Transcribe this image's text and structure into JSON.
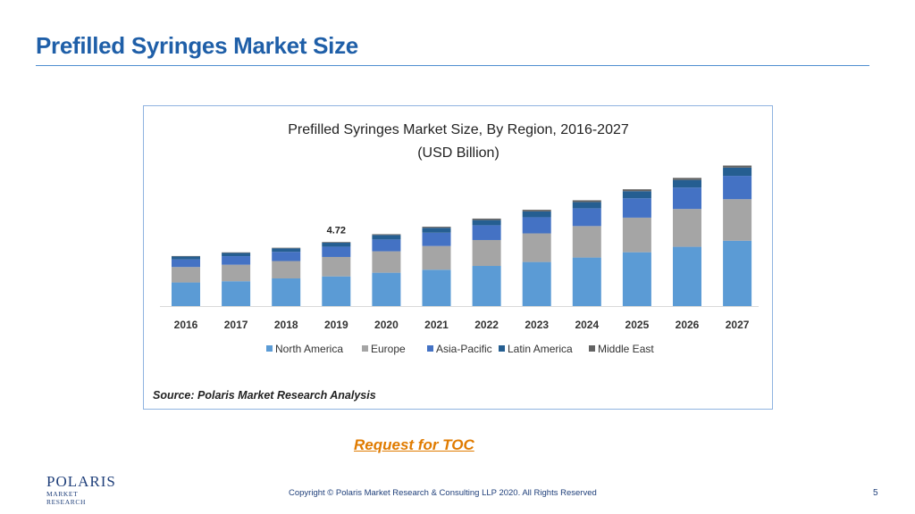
{
  "slide": {
    "title": "Prefilled Syringes Market Size",
    "toc_link": "Request for TOC",
    "copyright": "Copyright © Polaris Market Research & Consulting LLP 2020. All Rights Reserved",
    "page_number": "5",
    "logo_main": "POLARIS",
    "logo_sub": "MARKET RESEARCH"
  },
  "chart_data": {
    "type": "bar",
    "stacked": true,
    "title": "Prefilled Syringes Market Size, By Region, 2016-2027",
    "subtitle": "(USD Billion)",
    "categories": [
      "2016",
      "2017",
      "2018",
      "2019",
      "2020",
      "2021",
      "2022",
      "2023",
      "2024",
      "2025",
      "2026",
      "2027"
    ],
    "series": [
      {
        "name": "North America",
        "color": "#5b9bd5",
        "values": [
          1.74,
          1.83,
          2.04,
          2.19,
          2.46,
          2.68,
          2.96,
          3.25,
          3.58,
          3.97,
          4.37,
          4.82
        ]
      },
      {
        "name": "Europe",
        "color": "#a5a5a5",
        "values": [
          1.14,
          1.22,
          1.28,
          1.43,
          1.58,
          1.75,
          1.91,
          2.11,
          2.32,
          2.55,
          2.79,
          3.06
        ]
      },
      {
        "name": "Asia-Pacific",
        "color": "#4472c4",
        "values": [
          0.56,
          0.63,
          0.68,
          0.76,
          0.87,
          0.98,
          1.09,
          1.19,
          1.31,
          1.43,
          1.58,
          1.72
        ]
      },
      {
        "name": "Latin America",
        "color": "#255e91",
        "values": [
          0.22,
          0.24,
          0.26,
          0.29,
          0.33,
          0.36,
          0.38,
          0.43,
          0.46,
          0.52,
          0.56,
          0.61
        ]
      },
      {
        "name": "Middle East",
        "color": "#636363",
        "values": [
          0.03,
          0.04,
          0.04,
          0.05,
          0.06,
          0.08,
          0.11,
          0.12,
          0.13,
          0.14,
          0.15,
          0.15
        ]
      }
    ],
    "annotations": [
      {
        "category": "2019",
        "text": "4.72"
      }
    ],
    "legend_position": "bottom",
    "grid": false,
    "source": "Source: Polaris Market Research Analysis"
  }
}
